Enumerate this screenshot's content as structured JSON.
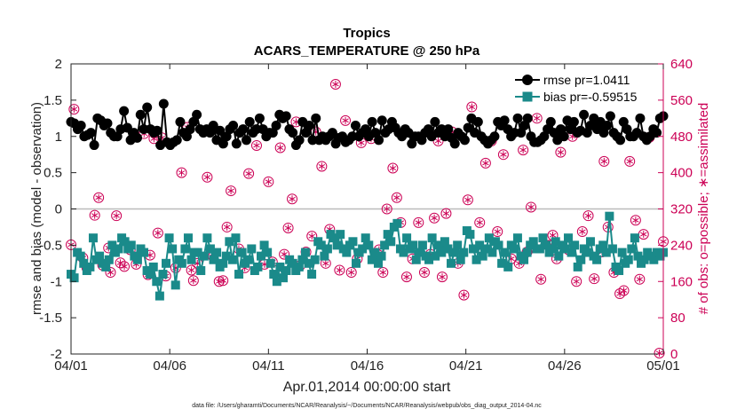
{
  "chart_data": {
    "type": "line",
    "title": "Tropics",
    "subtitle": "ACARS_TEMPERATURE @ 250 hPa",
    "xlabel": "Apr.01,2014 00:00:00 start",
    "ylabel_left": "rmse and bias (model - observation)",
    "ylabel_right": "# of obs: o=possible; ∗=assimilated",
    "footnote": "data file: /Users/gharamti/Documents/NCAR/Reanalysis/~/Documents/NCAR/Reanalysis/webpub/obs_diag_output_2014-04.nc",
    "x_ticks": [
      "04/01",
      "04/06",
      "04/11",
      "04/16",
      "04/21",
      "04/26",
      "05/01"
    ],
    "xlim": [
      0,
      30
    ],
    "ylim_left": [
      -2,
      2
    ],
    "yticks_left": [
      -2,
      -1.5,
      -1,
      -0.5,
      0,
      0.5,
      1,
      1.5,
      2
    ],
    "ylim_right": [
      0,
      640
    ],
    "yticks_right": [
      0,
      80,
      160,
      240,
      320,
      400,
      480,
      560,
      640
    ],
    "legend_position": "top-right",
    "colors": {
      "rmse": "#000000",
      "bias": "#1a8a8a",
      "obs": "#cc0055",
      "zero_line": "#bbbbbb"
    },
    "series": [
      {
        "name": "rmse",
        "label": "rmse pr=1.0411",
        "values": [
          1.2,
          1.18,
          1.1,
          1.15,
          1.0,
          1.02,
          1.05,
          0.88,
          1.25,
          1.22,
          1.15,
          1.18,
          1.05,
          1.0,
          1.0,
          1.1,
          1.35,
          1.12,
          0.95,
          1.05,
          0.98,
          1.3,
          1.1,
          1.4,
          1.1,
          1.05,
          1.08,
          0.88,
          1.45,
          0.92,
          0.88,
          0.92,
          0.95,
          1.2,
          1.05,
          1.0,
          1.1,
          1.2,
          1.3,
          1.1,
          1.05,
          1.1,
          1.05,
          1.15,
          0.95,
          1.08,
          0.9,
          1.0,
          1.1,
          1.15,
          0.9,
          1.05,
          1.1,
          0.95,
          1.2,
          1.05,
          1.1,
          1.25,
          1.1,
          1.0,
          1.05,
          1.05,
          1.15,
          1.3,
          1.25,
          1.28,
          1.1,
          1.05,
          0.88,
          0.95,
          1.2,
          1.05,
          1.15,
          0.95,
          1.25,
          0.95,
          1.0,
          0.95,
          1.0,
          1.05,
          0.9,
          0.98,
          1.0,
          0.92,
          0.95,
          1.0,
          1.15,
          1.0,
          1.05,
          1.1,
          1.0,
          1.2,
          1.05,
          0.95,
          1.22,
          1.05,
          1.1,
          1.2,
          1.12,
          1.05,
          1.0,
          1.1,
          1.05,
          0.9,
          1.0,
          1.0,
          0.95,
          1.05,
          1.1,
          1.0,
          1.2,
          1.05,
          1.1,
          1.0,
          1.1,
          0.98,
          0.9,
          1.05,
          1.0,
          0.95,
          1.12,
          1.25,
          1.05,
          1.2,
          1.0,
          0.95,
          0.9,
          0.95,
          1.0,
          1.2,
          1.15,
          1.22,
          1.1,
          1.0,
          1.05,
          1.25,
          1.05,
          1.15,
          1.25,
          1.0,
          0.92,
          0.92,
          0.95,
          1.0,
          1.1,
          1.2,
          1.05,
          0.95,
          1.1,
          1.0,
          1.22,
          1.1,
          1.2,
          1.05,
          1.08,
          1.3,
          1.05,
          1.15,
          1.25,
          1.1,
          1.2,
          1.05,
          1.15,
          1.28,
          1.05,
          1.0,
          0.95,
          1.2,
          1.1,
          1.0,
          1.0,
          1.05,
          1.25,
          1.0,
          0.95,
          1.0,
          1.1,
          1.05,
          1.25,
          1.28
        ]
      },
      {
        "name": "bias",
        "label": "bias pr=-0.59515",
        "values": [
          -0.9,
          -0.95,
          -0.6,
          -0.65,
          -0.75,
          -0.85,
          -0.8,
          -0.4,
          -0.7,
          -0.65,
          -0.75,
          -0.8,
          -0.7,
          -0.5,
          -0.6,
          -0.55,
          -0.4,
          -0.45,
          -0.55,
          -0.5,
          -0.65,
          -0.7,
          -0.55,
          -0.6,
          -0.85,
          -0.9,
          -0.8,
          -1.0,
          -1.2,
          -0.9,
          -0.75,
          -0.4,
          -0.55,
          -1.05,
          -0.7,
          -0.75,
          -0.55,
          -0.4,
          -0.7,
          -0.6,
          -0.6,
          -0.85,
          -0.65,
          -0.4,
          -0.55,
          -0.7,
          -0.6,
          -0.8,
          -0.75,
          -0.65,
          -0.45,
          -0.7,
          -0.4,
          -0.9,
          -0.6,
          -0.75,
          -0.7,
          -0.55,
          -0.85,
          -0.8,
          -0.65,
          -0.5,
          -0.6,
          -0.75,
          -0.9,
          -1.0,
          -0.8,
          -0.95,
          -0.85,
          -0.7,
          -0.75,
          -0.85,
          -0.8,
          -0.7,
          -0.6,
          -0.75,
          -0.9,
          -0.7,
          -0.45,
          -0.5,
          -0.65,
          -0.55,
          -0.35,
          -0.4,
          -0.5,
          -0.35,
          -0.55,
          -0.6,
          -0.5,
          -0.45,
          -0.75,
          -0.6,
          -0.55,
          -0.4,
          -0.5,
          -0.7,
          -0.6,
          -0.75,
          -0.65,
          -0.5,
          -0.35,
          -0.45,
          -0.25,
          -0.2,
          -0.55,
          -0.6,
          -0.4,
          -0.55,
          -0.5,
          -0.7,
          -0.6,
          -0.5,
          -0.65,
          -0.7,
          -0.4,
          -0.65,
          -0.5,
          -0.6,
          -0.45,
          -0.55,
          -0.75,
          -0.6,
          -0.5,
          -0.7,
          -0.6,
          -0.3,
          -0.35,
          -0.55,
          -0.7,
          -0.5,
          -0.65,
          -0.55,
          -0.4,
          -0.6,
          -0.45,
          -0.5,
          -0.75,
          -0.6,
          -0.8,
          -0.5,
          -0.55,
          -0.4,
          -0.65,
          -0.7,
          -0.6,
          -0.5,
          -0.45,
          -0.55,
          -0.55,
          -0.4,
          -0.5,
          -0.6,
          -0.55,
          -0.45,
          -0.65,
          -0.5,
          -0.55,
          -0.4,
          -0.6,
          -0.5,
          -0.8,
          -0.7,
          -0.55,
          -0.6,
          -0.45,
          -0.65,
          -0.7,
          -0.55,
          -0.5,
          -0.6,
          -0.1,
          -0.55,
          -0.8,
          -0.85,
          -0.6,
          -0.75,
          -0.7,
          -0.55,
          -0.4,
          -0.65,
          -0.75,
          -0.7,
          -0.6,
          -0.65,
          -0.7,
          -0.6,
          -0.65,
          -0.6
        ]
      }
    ],
    "obs_possible": {
      "name": "# of obs possible",
      "marker": "circle",
      "points": [
        [
          0.0,
          241
        ],
        [
          0.15,
          540
        ],
        [
          0.6,
          212
        ],
        [
          0.8,
          190
        ],
        [
          1.2,
          306
        ],
        [
          1.4,
          345
        ],
        [
          1.6,
          196
        ],
        [
          1.9,
          234
        ],
        [
          2.0,
          180
        ],
        [
          2.3,
          305
        ],
        [
          2.5,
          201
        ],
        [
          2.7,
          193
        ],
        [
          3.0,
          230
        ],
        [
          3.3,
          198
        ],
        [
          3.7,
          486
        ],
        [
          3.9,
          175
        ],
        [
          4.0,
          218
        ],
        [
          4.2,
          475
        ],
        [
          4.4,
          267
        ],
        [
          4.6,
          477
        ],
        [
          4.8,
          172
        ],
        [
          5.3,
          190
        ],
        [
          5.6,
          400
        ],
        [
          5.9,
          500
        ],
        [
          6.1,
          185
        ],
        [
          6.2,
          162
        ],
        [
          6.4,
          200
        ],
        [
          6.9,
          390
        ],
        [
          7.2,
          215
        ],
        [
          7.5,
          160
        ],
        [
          7.7,
          162
        ],
        [
          7.9,
          280
        ],
        [
          8.1,
          360
        ],
        [
          8.5,
          232
        ],
        [
          8.8,
          190
        ],
        [
          9.0,
          398
        ],
        [
          9.4,
          460
        ],
        [
          9.8,
          198
        ],
        [
          10.0,
          380
        ],
        [
          10.2,
          203
        ],
        [
          10.6,
          455
        ],
        [
          10.8,
          220
        ],
        [
          11.0,
          278
        ],
        [
          11.2,
          342
        ],
        [
          11.4,
          512
        ],
        [
          11.6,
          195
        ],
        [
          11.9,
          225
        ],
        [
          12.2,
          260
        ],
        [
          12.4,
          490
        ],
        [
          12.7,
          414
        ],
        [
          12.9,
          200
        ],
        [
          13.1,
          275
        ],
        [
          13.4,
          595
        ],
        [
          13.6,
          185
        ],
        [
          13.9,
          515
        ],
        [
          14.2,
          180
        ],
        [
          14.5,
          210
        ],
        [
          14.7,
          466
        ],
        [
          15.2,
          475
        ],
        [
          15.6,
          230
        ],
        [
          15.8,
          180
        ],
        [
          16.0,
          320
        ],
        [
          16.3,
          410
        ],
        [
          16.5,
          345
        ],
        [
          16.7,
          290
        ],
        [
          17.0,
          170
        ],
        [
          17.3,
          210
        ],
        [
          17.6,
          290
        ],
        [
          17.9,
          180
        ],
        [
          18.2,
          220
        ],
        [
          18.4,
          300
        ],
        [
          18.6,
          470
        ],
        [
          18.8,
          170
        ],
        [
          19.0,
          310
        ],
        [
          19.3,
          490
        ],
        [
          19.6,
          200
        ],
        [
          19.9,
          130
        ],
        [
          20.1,
          340
        ],
        [
          20.3,
          545
        ],
        [
          20.7,
          290
        ],
        [
          21.0,
          421
        ],
        [
          21.3,
          470
        ],
        [
          21.6,
          270
        ],
        [
          21.9,
          440
        ],
        [
          22.3,
          210
        ],
        [
          22.7,
          200
        ],
        [
          22.9,
          450
        ],
        [
          23.1,
          225
        ],
        [
          23.3,
          324
        ],
        [
          23.6,
          520
        ],
        [
          23.8,
          165
        ],
        [
          24.2,
          240
        ],
        [
          24.4,
          262
        ],
        [
          24.6,
          210
        ],
        [
          24.8,
          445
        ],
        [
          25.2,
          230
        ],
        [
          25.4,
          480
        ],
        [
          25.6,
          160
        ],
        [
          25.9,
          270
        ],
        [
          26.2,
          305
        ],
        [
          26.5,
          166
        ],
        [
          26.9,
          225
        ],
        [
          27.0,
          425
        ],
        [
          27.2,
          280
        ],
        [
          27.5,
          180
        ],
        [
          27.8,
          133
        ],
        [
          28.0,
          140
        ],
        [
          28.3,
          425
        ],
        [
          28.6,
          295
        ],
        [
          28.8,
          165
        ],
        [
          29.0,
          264
        ],
        [
          29.3,
          478
        ],
        [
          29.8,
          2
        ],
        [
          30.0,
          248
        ]
      ]
    },
    "obs_assimilated": {
      "name": "# of obs assimilated",
      "marker": "asterisk",
      "note": "assimilated counts coincide with possible counts"
    }
  }
}
